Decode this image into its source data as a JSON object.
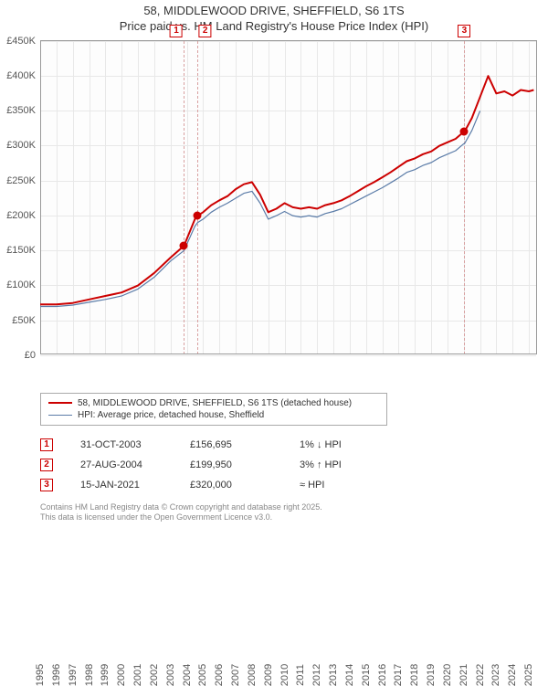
{
  "title_line1": "58, MIDDLEWOOD DRIVE, SHEFFIELD, S6 1TS",
  "title_line2": "Price paid vs. HM Land Registry's House Price Index (HPI)",
  "chart": {
    "ylim": [
      0,
      450
    ],
    "ytick_step": 50,
    "xlim": [
      1995,
      2025.5
    ],
    "xticks": [
      1995,
      1996,
      1997,
      1998,
      1999,
      2000,
      2001,
      2002,
      2003,
      2004,
      2005,
      2006,
      2007,
      2008,
      2009,
      2010,
      2011,
      2012,
      2013,
      2014,
      2015,
      2016,
      2017,
      2018,
      2019,
      2020,
      2021,
      2022,
      2023,
      2024,
      2025
    ],
    "ylabels": [
      "£0",
      "£50K",
      "£100K",
      "£150K",
      "£200K",
      "£250K",
      "£300K",
      "£350K",
      "£400K",
      "£450K"
    ],
    "bg": "#fdfdfd",
    "grid_color": "#e8e8e8",
    "series": {
      "price": {
        "label": "58, MIDDLEWOOD DRIVE, SHEFFIELD, S6 1TS (detached house)",
        "color": "#cc0000",
        "width": 2,
        "points": [
          [
            1995,
            73
          ],
          [
            1996,
            73
          ],
          [
            1997,
            75
          ],
          [
            1998,
            80
          ],
          [
            1999,
            85
          ],
          [
            2000,
            90
          ],
          [
            2001,
            100
          ],
          [
            2002,
            118
          ],
          [
            2003,
            140
          ],
          [
            2003.83,
            157
          ],
          [
            2004.5,
            195
          ],
          [
            2004.66,
            200
          ],
          [
            2005,
            205
          ],
          [
            2005.5,
            215
          ],
          [
            2006,
            222
          ],
          [
            2006.5,
            228
          ],
          [
            2007,
            238
          ],
          [
            2007.5,
            245
          ],
          [
            2008,
            248
          ],
          [
            2008.5,
            230
          ],
          [
            2009,
            205
          ],
          [
            2009.5,
            210
          ],
          [
            2010,
            218
          ],
          [
            2010.5,
            212
          ],
          [
            2011,
            210
          ],
          [
            2011.5,
            212
          ],
          [
            2012,
            210
          ],
          [
            2012.5,
            215
          ],
          [
            2013,
            218
          ],
          [
            2013.5,
            222
          ],
          [
            2014,
            228
          ],
          [
            2014.5,
            235
          ],
          [
            2015,
            242
          ],
          [
            2015.5,
            248
          ],
          [
            2016,
            255
          ],
          [
            2016.5,
            262
          ],
          [
            2017,
            270
          ],
          [
            2017.5,
            278
          ],
          [
            2018,
            282
          ],
          [
            2018.5,
            288
          ],
          [
            2019,
            292
          ],
          [
            2019.5,
            300
          ],
          [
            2020,
            305
          ],
          [
            2020.5,
            310
          ],
          [
            2021,
            320
          ],
          [
            2021.04,
            320
          ],
          [
            2021.5,
            340
          ],
          [
            2022,
            370
          ],
          [
            2022.5,
            400
          ],
          [
            2023,
            375
          ],
          [
            2023.5,
            378
          ],
          [
            2024,
            372
          ],
          [
            2024.5,
            380
          ],
          [
            2025,
            378
          ],
          [
            2025.3,
            380
          ]
        ]
      },
      "hpi": {
        "label": "HPI: Average price, detached house, Sheffield",
        "color": "#5b7ca8",
        "width": 1.2,
        "points": [
          [
            1995,
            70
          ],
          [
            1996,
            70
          ],
          [
            1997,
            72
          ],
          [
            1998,
            76
          ],
          [
            1999,
            80
          ],
          [
            2000,
            85
          ],
          [
            2001,
            95
          ],
          [
            2002,
            112
          ],
          [
            2003,
            135
          ],
          [
            2003.83,
            150
          ],
          [
            2004.5,
            185
          ],
          [
            2004.66,
            190
          ],
          [
            2005,
            195
          ],
          [
            2005.5,
            205
          ],
          [
            2006,
            212
          ],
          [
            2006.5,
            218
          ],
          [
            2007,
            225
          ],
          [
            2007.5,
            232
          ],
          [
            2008,
            235
          ],
          [
            2008.5,
            218
          ],
          [
            2009,
            195
          ],
          [
            2009.5,
            200
          ],
          [
            2010,
            206
          ],
          [
            2010.5,
            200
          ],
          [
            2011,
            198
          ],
          [
            2011.5,
            200
          ],
          [
            2012,
            198
          ],
          [
            2012.5,
            203
          ],
          [
            2013,
            206
          ],
          [
            2013.5,
            210
          ],
          [
            2014,
            216
          ],
          [
            2014.5,
            222
          ],
          [
            2015,
            228
          ],
          [
            2015.5,
            234
          ],
          [
            2016,
            240
          ],
          [
            2016.5,
            247
          ],
          [
            2017,
            254
          ],
          [
            2017.5,
            262
          ],
          [
            2018,
            266
          ],
          [
            2018.5,
            272
          ],
          [
            2019,
            276
          ],
          [
            2019.5,
            283
          ],
          [
            2020,
            288
          ],
          [
            2020.5,
            293
          ],
          [
            2021,
            303
          ],
          [
            2021.04,
            303
          ],
          [
            2021.5,
            322
          ],
          [
            2022,
            350
          ]
        ]
      }
    },
    "markers": [
      {
        "id": "1",
        "x": 2003.83,
        "y": 157,
        "line_color": "#d8a0a0"
      },
      {
        "id": "2",
        "x": 2004.66,
        "y": 200,
        "line_color": "#d8a0a0"
      },
      {
        "id": "3",
        "x": 2021.04,
        "y": 320,
        "line_color": "#d8a0a0"
      }
    ]
  },
  "legend": {
    "items": [
      {
        "label": "58, MIDDLEWOOD DRIVE, SHEFFIELD, S6 1TS (detached house)",
        "color": "#cc0000",
        "width": 2
      },
      {
        "label": "HPI: Average price, detached house, Sheffield",
        "color": "#5b7ca8",
        "width": 1
      }
    ]
  },
  "transactions": [
    {
      "id": "1",
      "date": "31-OCT-2003",
      "price": "£156,695",
      "note": "1% ↓ HPI"
    },
    {
      "id": "2",
      "date": "27-AUG-2004",
      "price": "£199,950",
      "note": "3% ↑ HPI"
    },
    {
      "id": "3",
      "date": "15-JAN-2021",
      "price": "£320,000",
      "note": "≈ HPI"
    }
  ],
  "footer_line1": "Contains HM Land Registry data © Crown copyright and database right 2025.",
  "footer_line2": "This data is licensed under the Open Government Licence v3.0."
}
